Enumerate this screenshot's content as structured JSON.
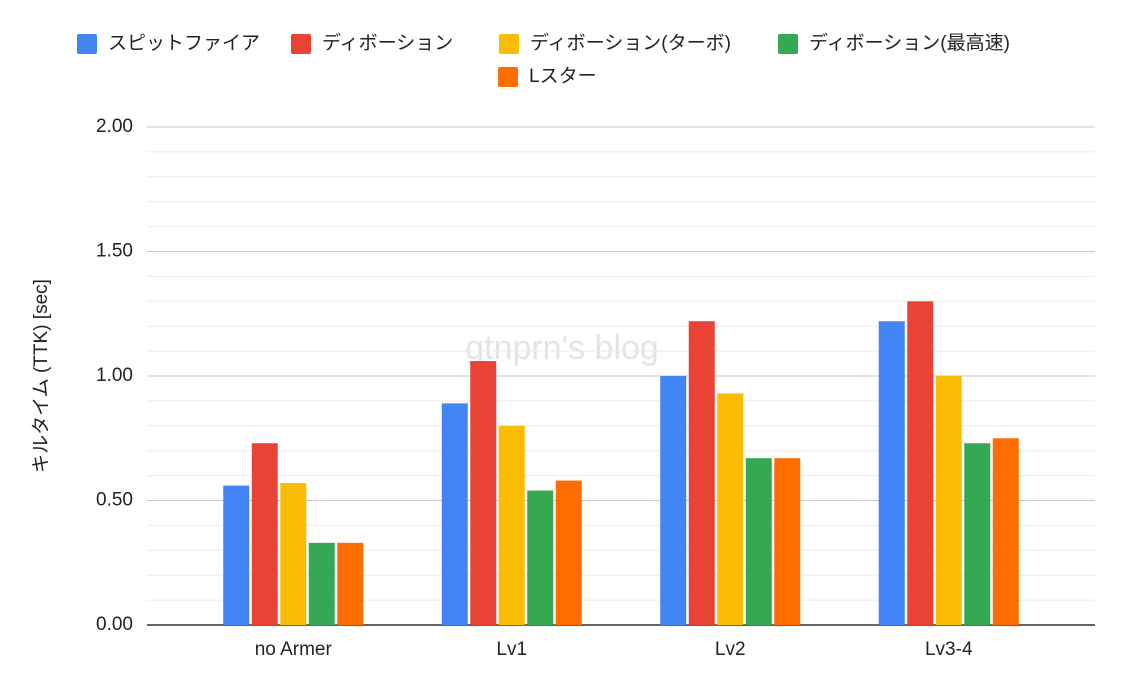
{
  "chart_data": {
    "type": "bar",
    "y_label": "キルタイム (TTK) [sec]",
    "watermark": "gtnprn's blog",
    "categories": [
      "no Armer",
      "Lv1",
      "Lv2",
      "Lv3-4"
    ],
    "series": [
      {
        "name": "スピットファイア",
        "color": "#4285f4",
        "values": [
          0.56,
          0.89,
          1.0,
          1.22
        ]
      },
      {
        "name": "ディボーション",
        "color": "#ea4335",
        "values": [
          0.73,
          1.06,
          1.22,
          1.3
        ]
      },
      {
        "name": "ディボーション(ターボ)",
        "color": "#fbbc04",
        "values": [
          0.57,
          0.8,
          0.93,
          1.0
        ]
      },
      {
        "name": "ディボーション(最高速)",
        "color": "#34a853",
        "values": [
          0.33,
          0.54,
          0.67,
          0.73
        ]
      },
      {
        "name": "Lスター",
        "color": "#ff6d01",
        "values": [
          0.33,
          0.58,
          0.67,
          0.75
        ]
      }
    ],
    "ylim": [
      0,
      2
    ],
    "yticks": [
      {
        "value": 0,
        "label": "0.00"
      },
      {
        "value": 0.5,
        "label": "0.50"
      },
      {
        "value": 1,
        "label": "1.00"
      },
      {
        "value": 1.5,
        "label": "1.50"
      },
      {
        "value": 2,
        "label": "2.00"
      }
    ],
    "minor_yticks": [
      0.1,
      0.2,
      0.3,
      0.4,
      0.6,
      0.7,
      0.8,
      0.9,
      1.1,
      1.2,
      1.3,
      1.4,
      1.6,
      1.7,
      1.8,
      1.9
    ],
    "grid": true,
    "legend": "top"
  }
}
